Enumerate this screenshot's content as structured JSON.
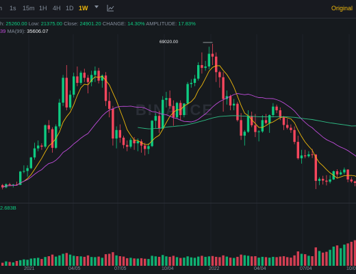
{
  "toolbar": {
    "timeframes": [
      "h",
      "1s",
      "15m",
      "1H",
      "4H",
      "1D",
      "1W"
    ],
    "active": "1W",
    "original_label": "Original",
    "indicator_icon": "chart-indicator-icon",
    "more_icon": "caret-down-icon"
  },
  "ohlc": {
    "high_label": "h:",
    "high": "25260.00",
    "low_label": "Low:",
    "low": "21375.00",
    "close_label": "Close:",
    "close": "24901.20",
    "change_label": "CHANGE:",
    "change": "14.30%",
    "amp_label": "AMPLITUDE:",
    "amp": "17.83%"
  },
  "ma": {
    "prefix": "39",
    "label": "MA(99):",
    "value": "35606.07"
  },
  "volume": {
    "value": "2.683B"
  },
  "max_label": "69020.00",
  "watermark": "BINANCE",
  "x_labels": [
    "2021",
    "04/05",
    "07/05",
    "10/04",
    "2022",
    "04/04",
    "07/04",
    "10/0"
  ],
  "colors": {
    "up": "#0ecb81",
    "down": "#f6465d",
    "ma7": "#f0b90b",
    "ma25": "#c04cdb",
    "ma99": "#2ebd85",
    "accent": "#f0b90b"
  },
  "chart_data": {
    "type": "candlestick",
    "series": [
      {
        "name": "price",
        "values": [
          [
            19000,
            19400,
            17500,
            18200
          ],
          [
            18200,
            19700,
            17900,
            19300
          ],
          [
            19300,
            19800,
            18900,
            19000
          ],
          [
            19000,
            19400,
            18200,
            19200
          ],
          [
            19200,
            20200,
            18800,
            19100
          ],
          [
            19100,
            24000,
            19000,
            23800
          ],
          [
            23800,
            26000,
            23200,
            24000
          ],
          [
            24000,
            26000,
            22000,
            25000
          ],
          [
            25000,
            29000,
            24700,
            28800
          ],
          [
            28800,
            34000,
            28000,
            32000
          ],
          [
            32000,
            34800,
            31000,
            33000
          ],
          [
            33000,
            33800,
            31500,
            32600
          ],
          [
            32600,
            40500,
            32000,
            40200
          ],
          [
            40200,
            42000,
            37500,
            38800
          ],
          [
            38800,
            39500,
            30500,
            32200
          ],
          [
            32200,
            40500,
            31800,
            39800
          ],
          [
            39800,
            49500,
            39000,
            48200
          ],
          [
            48200,
            58000,
            47000,
            57000
          ],
          [
            57000,
            61500,
            45500,
            46500
          ],
          [
            46500,
            52500,
            45800,
            51000
          ],
          [
            51000,
            58800,
            50000,
            57500
          ],
          [
            57500,
            61000,
            54000,
            55200
          ],
          [
            55200,
            59500,
            54500,
            58800
          ],
          [
            58800,
            60200,
            55500,
            57000
          ],
          [
            57000,
            58000,
            51500,
            55500
          ],
          [
            55500,
            59500,
            54000,
            58000
          ],
          [
            58000,
            61000,
            55500,
            59500
          ],
          [
            59500,
            60500,
            55000,
            56000
          ],
          [
            56000,
            58200,
            53500,
            57800
          ],
          [
            57800,
            59000,
            47000,
            48800
          ],
          [
            48800,
            52000,
            43000,
            46000
          ],
          [
            46000,
            47000,
            33000,
            35500
          ],
          [
            35500,
            39800,
            32000,
            38500
          ],
          [
            38500,
            40500,
            34000,
            35800
          ],
          [
            35800,
            36500,
            32000,
            33200
          ],
          [
            33200,
            34800,
            31000,
            32600
          ],
          [
            32600,
            35800,
            32000,
            35000
          ],
          [
            35000,
            36000,
            31500,
            33800
          ],
          [
            33800,
            35500,
            31000,
            34500
          ],
          [
            34500,
            35200,
            30500,
            33000
          ],
          [
            33000,
            34000,
            29500,
            31800
          ],
          [
            31800,
            33800,
            30000,
            32800
          ],
          [
            32800,
            42000,
            32500,
            41800
          ],
          [
            41800,
            44500,
            39200,
            43500
          ],
          [
            43500,
            45200,
            37500,
            39000
          ],
          [
            39000,
            50500,
            38800,
            49200
          ],
          [
            49200,
            52000,
            46500,
            49800
          ],
          [
            49800,
            52500,
            46000,
            47000
          ],
          [
            47000,
            49000,
            40000,
            43000
          ],
          [
            43000,
            48500,
            42500,
            48100
          ],
          [
            48100,
            49000,
            42000,
            43800
          ],
          [
            43800,
            48000,
            43000,
            47900
          ],
          [
            47900,
            55500,
            47500,
            54800
          ],
          [
            54800,
            56500,
            53500,
            55200
          ],
          [
            55200,
            58000,
            54000,
            56700
          ],
          [
            56700,
            62500,
            56000,
            61500
          ],
          [
            61500,
            66000,
            58500,
            60500
          ],
          [
            60500,
            63000,
            59500,
            61000
          ],
          [
            61000,
            68000,
            60000,
            65500
          ],
          [
            65500,
            69020,
            61500,
            64500
          ],
          [
            64500,
            66000,
            55500,
            59000
          ],
          [
            59000,
            59500,
            53500,
            57200
          ],
          [
            57200,
            59000,
            45000,
            49500
          ],
          [
            49500,
            52500,
            47500,
            50500
          ],
          [
            50500,
            51000,
            45500,
            47200
          ],
          [
            47200,
            49500,
            45500,
            47800
          ],
          [
            47800,
            48500,
            41500,
            42000
          ],
          [
            42000,
            44500,
            35000,
            36500
          ],
          [
            36500,
            38500,
            33000,
            37900
          ],
          [
            37900,
            45500,
            37500,
            43500
          ],
          [
            43500,
            45000,
            39500,
            40200
          ],
          [
            40200,
            44200,
            36000,
            37800
          ],
          [
            37800,
            38500,
            34500,
            38000
          ],
          [
            38000,
            43800,
            37500,
            42000
          ],
          [
            42000,
            44200,
            40500,
            41000
          ],
          [
            41000,
            44000,
            37500,
            43800
          ],
          [
            43800,
            48000,
            43000,
            46800
          ],
          [
            46800,
            47500,
            44500,
            45500
          ],
          [
            45500,
            46500,
            42000,
            43000
          ],
          [
            43000,
            43500,
            38500,
            40300
          ],
          [
            40300,
            42500,
            38700,
            39300
          ],
          [
            39300,
            40500,
            37500,
            38500
          ],
          [
            38500,
            39800,
            33500,
            34300
          ],
          [
            34300,
            36500,
            28000,
            28500
          ],
          [
            28500,
            31500,
            26600,
            29500
          ],
          [
            29500,
            31500,
            28500,
            29200
          ],
          [
            29200,
            31000,
            28700,
            29900
          ],
          [
            29900,
            31800,
            28600,
            29800
          ],
          [
            29800,
            30000,
            17600,
            20500
          ],
          [
            20500,
            21800,
            19000,
            21200
          ],
          [
            21200,
            22300,
            19200,
            20600
          ],
          [
            20600,
            22500,
            18900,
            20200
          ],
          [
            20200,
            22500,
            19600,
            21000
          ],
          [
            21000,
            24200,
            20800,
            23900
          ],
          [
            23900,
            24600,
            21600,
            22800
          ],
          [
            22800,
            24300,
            22500,
            23500
          ],
          [
            23500,
            25200,
            22800,
            24500
          ],
          [
            24500,
            24600,
            20000,
            21000
          ],
          [
            21000,
            21800,
            19800,
            20300
          ],
          [
            20300,
            20600,
            18600,
            19800
          ],
          [
            19800,
            22400,
            19000,
            20000
          ],
          [
            20000,
            20400,
            18500,
            19400
          ],
          [
            19400,
            19800,
            18200,
            19200
          ],
          [
            19200,
            20000,
            18800,
            19300
          ],
          [
            19300,
            20400,
            18900,
            20100
          ],
          [
            20100,
            21000,
            19200,
            20700
          ],
          [
            20700,
            21200,
            19500,
            20500
          ]
        ]
      },
      {
        "name": "volume",
        "values": [
          38,
          55,
          48,
          42,
          60,
          70,
          80,
          75,
          90,
          95,
          100,
          85,
          110,
          120,
          140,
          115,
          130,
          150,
          160,
          140,
          125,
          120,
          118,
          112,
          130,
          110,
          108,
          115,
          100,
          145,
          150,
          170,
          130,
          120,
          115,
          95,
          100,
          92,
          90,
          95,
          88,
          85,
          125,
          118,
          112,
          135,
          118,
          112,
          125,
          108,
          98,
          102,
          118,
          105,
          100,
          115,
          125,
          112,
          118,
          122,
          112,
          108,
          130,
          115,
          102,
          98,
          112,
          140,
          132,
          125,
          118,
          120,
          102,
          112,
          108,
          102,
          112,
          108,
          115,
          120,
          108,
          102,
          130,
          180,
          150,
          145,
          125,
          120,
          230,
          185,
          165,
          175,
          200,
          240,
          255,
          220,
          265,
          280,
          300,
          320,
          310,
          380,
          450,
          400,
          520,
          600,
          550
        ]
      }
    ]
  }
}
